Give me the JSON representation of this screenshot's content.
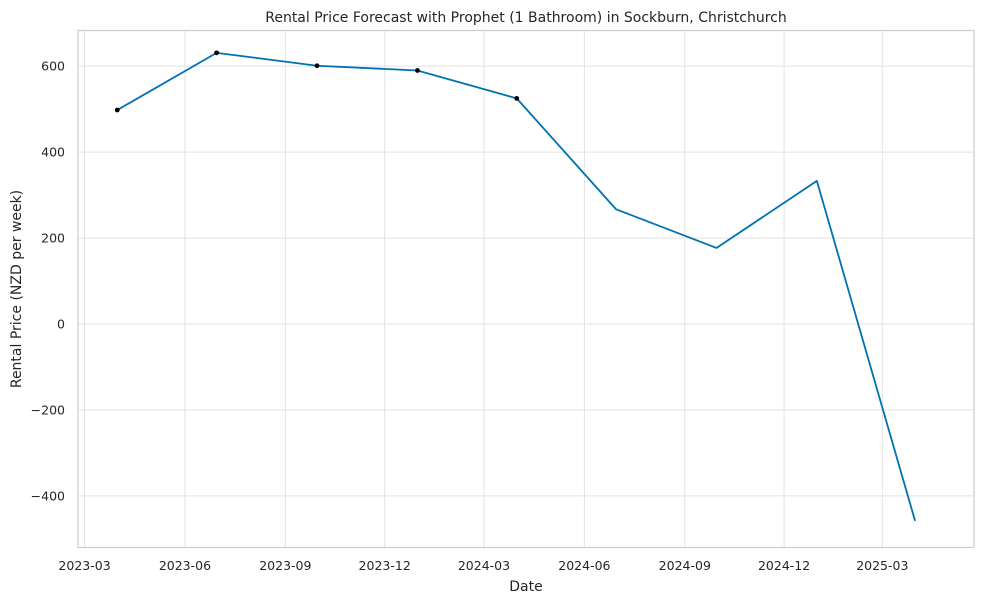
{
  "chart_data": {
    "type": "line",
    "title": "Rental Price Forecast with Prophet (1 Bathroom) in Sockburn, Christchurch",
    "xlabel": "Date",
    "ylabel": "Rental Price (NZD per week)",
    "grid": true,
    "x_ticks": [
      "2023-03",
      "2023-06",
      "2023-09",
      "2023-12",
      "2024-03",
      "2024-06",
      "2024-09",
      "2024-12",
      "2025-03"
    ],
    "y_ticks": [
      600,
      400,
      200,
      0,
      -200,
      -400
    ],
    "y_tick_labels": [
      "600",
      "400",
      "200",
      "0",
      "−200",
      "−400"
    ],
    "ylim": [
      -520,
      683
    ],
    "xlim": [
      "2023-02-23",
      "2025-05-24"
    ],
    "series": [
      {
        "role": "forecast",
        "color": "#0072b2",
        "points": [
          {
            "x": "2023-03-31",
            "y": 498
          },
          {
            "x": "2023-06-30",
            "y": 631
          },
          {
            "x": "2023-09-30",
            "y": 601
          },
          {
            "x": "2023-12-31",
            "y": 590
          },
          {
            "x": "2024-03-31",
            "y": 525
          },
          {
            "x": "2024-06-30",
            "y": 267
          },
          {
            "x": "2024-09-30",
            "y": 177
          },
          {
            "x": "2024-12-31",
            "y": 333
          },
          {
            "x": "2025-03-31",
            "y": -458
          }
        ]
      },
      {
        "role": "observed",
        "color": "#000000",
        "points": [
          {
            "x": "2023-03-31",
            "y": 498
          },
          {
            "x": "2023-06-30",
            "y": 631
          },
          {
            "x": "2023-09-30",
            "y": 601
          },
          {
            "x": "2023-12-31",
            "y": 590
          },
          {
            "x": "2024-03-31",
            "y": 525
          }
        ]
      }
    ]
  }
}
